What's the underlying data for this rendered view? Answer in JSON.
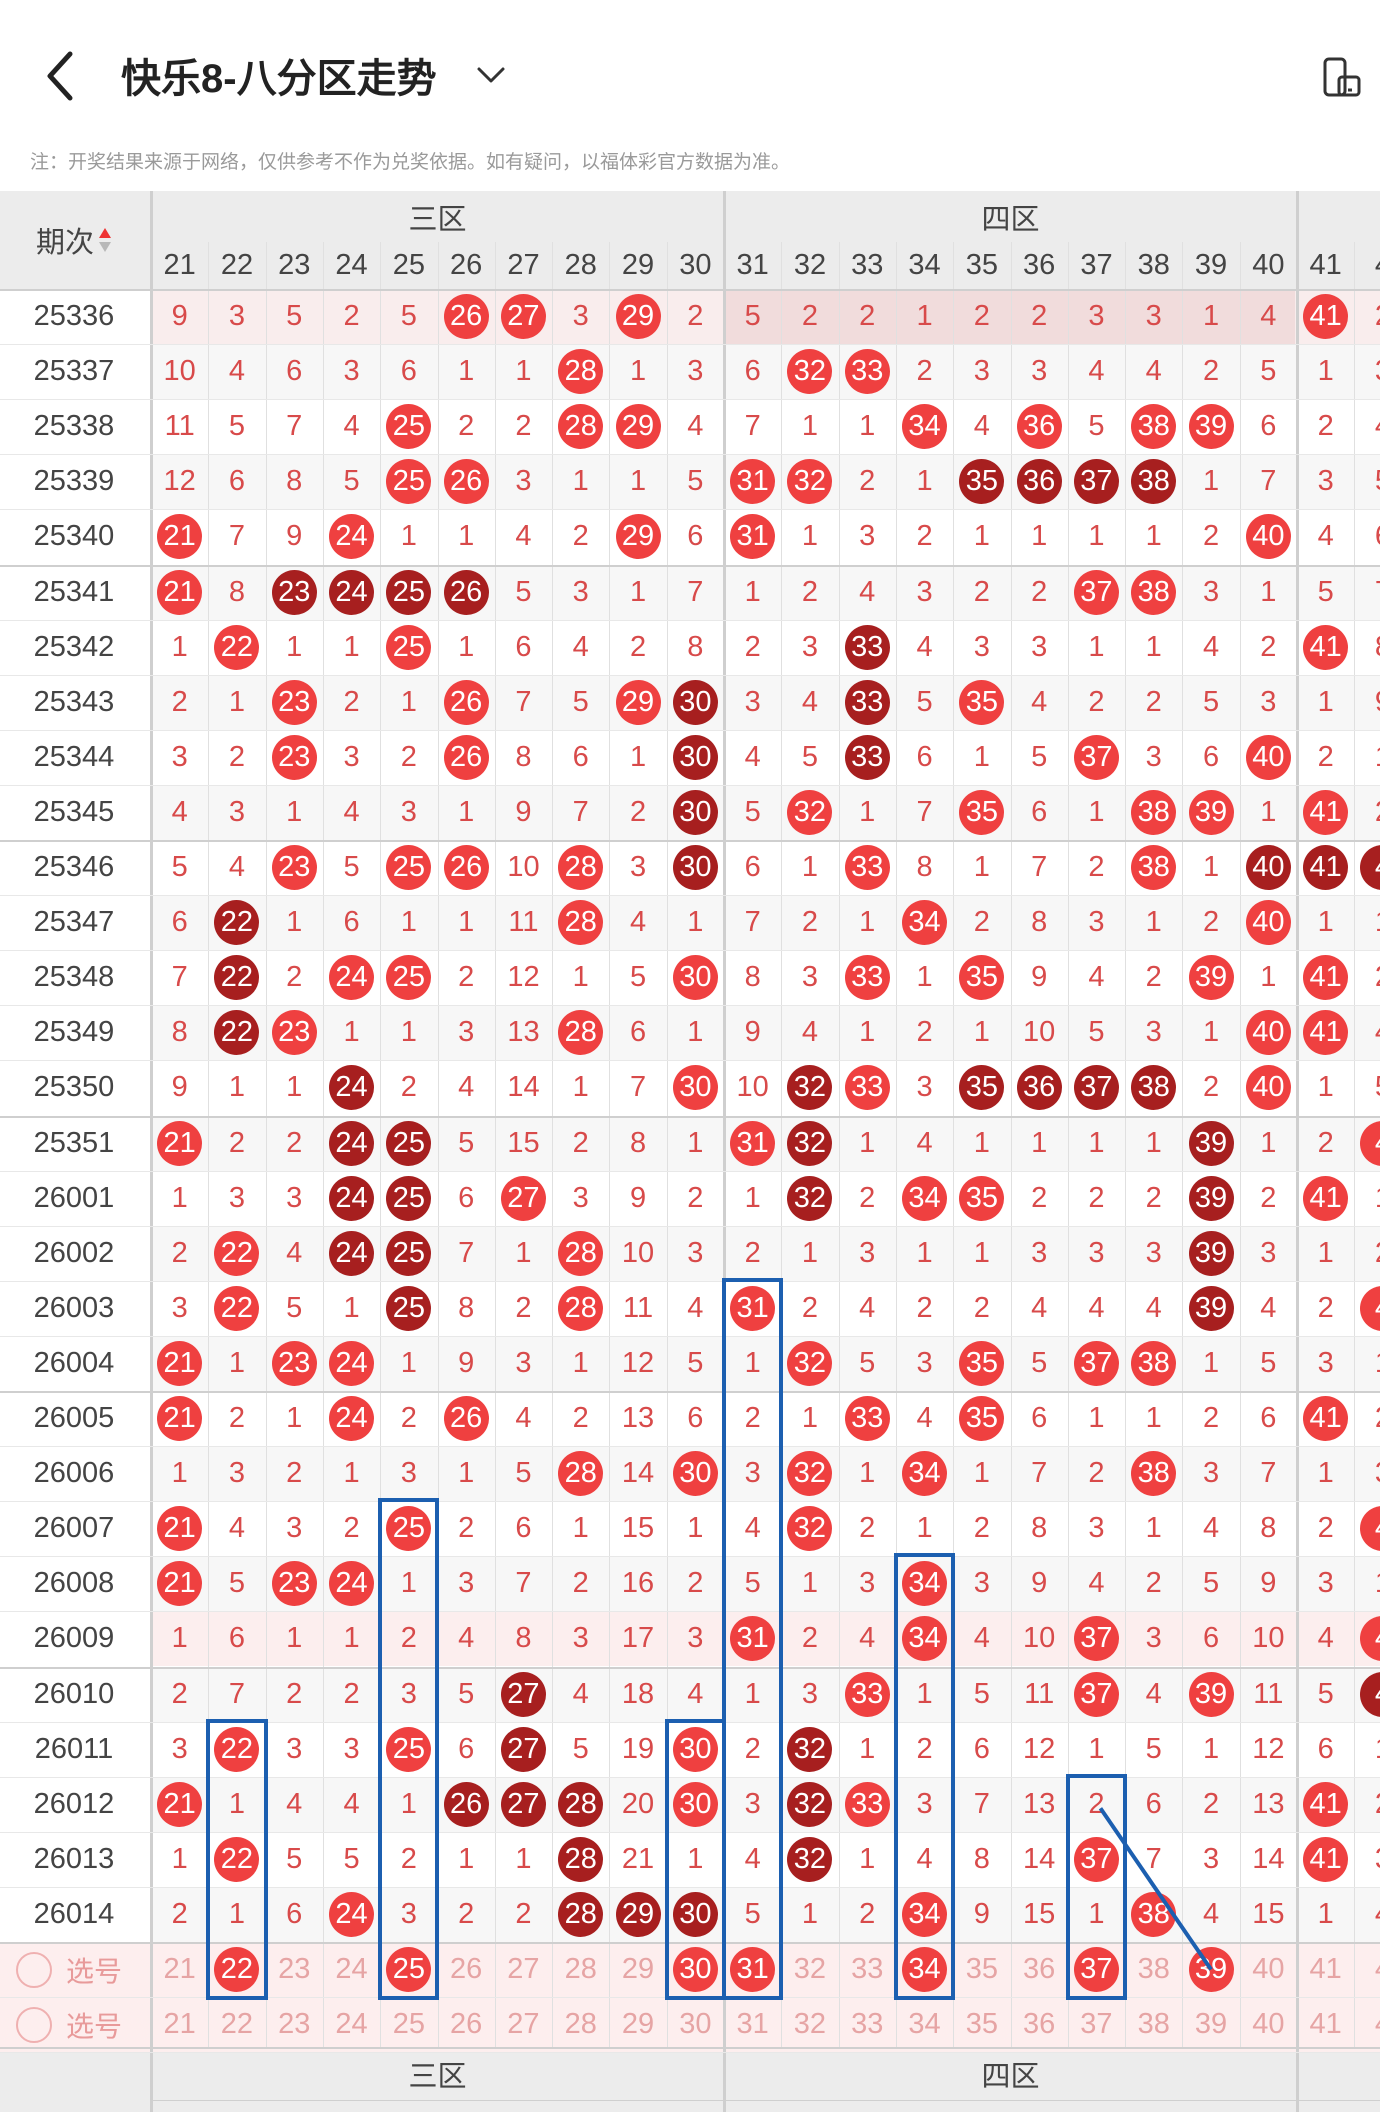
{
  "header": {
    "title": "快乐8-八分区走势",
    "note": "注：开奖结果来源于网络，仅供参考不作为兑奖依据。如有疑问，以福体彩官方数据为准。"
  },
  "icons": {
    "back": "chevron-left-icon",
    "dropdown": "chevron-down-icon",
    "rotate": "screen-rotate-icon",
    "sort": "sort-arrows-icon"
  },
  "colors": {
    "ball": "#ef4040",
    "dark_ball": "#a71f1f",
    "missing": "#d84a4a",
    "blue": "#1c5fb0"
  },
  "table": {
    "period_header": "期次",
    "zones": [
      {
        "label": "三区",
        "start": 21
      },
      {
        "label": "四区",
        "start": 31
      }
    ],
    "numbers": [
      "21",
      "22",
      "23",
      "24",
      "25",
      "26",
      "27",
      "28",
      "29",
      "30",
      "31",
      "32",
      "33",
      "34",
      "35",
      "36",
      "37",
      "38",
      "39",
      "40",
      "41",
      "4"
    ],
    "select_label": "选号",
    "selected": [
      22,
      25,
      30,
      31,
      34,
      37,
      39
    ],
    "rows": [
      {
        "p": "25336",
        "c": [
          "9",
          "3",
          "5",
          "2",
          "5",
          "R26",
          "R27",
          "3",
          "R29",
          "2",
          "5",
          "2",
          "2",
          "1",
          "2",
          "2",
          "3",
          "3",
          "1",
          "4",
          "R41",
          "2"
        ]
      },
      {
        "p": "25337",
        "c": [
          "10",
          "4",
          "6",
          "3",
          "6",
          "1",
          "1",
          "R28",
          "1",
          "3",
          "6",
          "R32",
          "R33",
          "2",
          "3",
          "3",
          "4",
          "4",
          "2",
          "5",
          "1",
          "3"
        ]
      },
      {
        "p": "25338",
        "c": [
          "11",
          "5",
          "7",
          "4",
          "R25",
          "2",
          "2",
          "R28",
          "R29",
          "4",
          "7",
          "1",
          "1",
          "R34",
          "4",
          "R36",
          "5",
          "R38",
          "R39",
          "6",
          "2",
          "4"
        ]
      },
      {
        "p": "25339",
        "c": [
          "12",
          "6",
          "8",
          "5",
          "R25",
          "R26",
          "3",
          "1",
          "1",
          "5",
          "R31",
          "R32",
          "2",
          "1",
          "D35",
          "D36",
          "D37",
          "D38",
          "1",
          "7",
          "3",
          "5"
        ]
      },
      {
        "p": "25340",
        "c": [
          "R21",
          "7",
          "9",
          "R24",
          "1",
          "1",
          "4",
          "2",
          "R29",
          "6",
          "R31",
          "1",
          "3",
          "2",
          "1",
          "1",
          "1",
          "1",
          "2",
          "R40",
          "4",
          "6"
        ]
      },
      {
        "p": "25341",
        "c": [
          "R21",
          "8",
          "D23",
          "D24",
          "D25",
          "D26",
          "5",
          "3",
          "1",
          "7",
          "1",
          "2",
          "4",
          "3",
          "2",
          "2",
          "R37",
          "R38",
          "3",
          "1",
          "5",
          "7"
        ]
      },
      {
        "p": "25342",
        "c": [
          "1",
          "R22",
          "1",
          "1",
          "R25",
          "1",
          "6",
          "4",
          "2",
          "8",
          "2",
          "3",
          "D33",
          "4",
          "3",
          "3",
          "1",
          "1",
          "4",
          "2",
          "R41",
          "8"
        ]
      },
      {
        "p": "25343",
        "c": [
          "2",
          "1",
          "R23",
          "2",
          "1",
          "R26",
          "7",
          "5",
          "R29",
          "D30",
          "3",
          "4",
          "D33",
          "5",
          "R35",
          "4",
          "2",
          "2",
          "5",
          "3",
          "1",
          "9"
        ]
      },
      {
        "p": "25344",
        "c": [
          "3",
          "2",
          "R23",
          "3",
          "2",
          "R26",
          "8",
          "6",
          "1",
          "D30",
          "4",
          "5",
          "D33",
          "6",
          "1",
          "5",
          "R37",
          "3",
          "6",
          "R40",
          "2",
          "1"
        ]
      },
      {
        "p": "25345",
        "c": [
          "4",
          "3",
          "1",
          "4",
          "3",
          "1",
          "9",
          "7",
          "2",
          "D30",
          "5",
          "R32",
          "1",
          "7",
          "R35",
          "6",
          "1",
          "R38",
          "R39",
          "1",
          "R41",
          "2"
        ]
      },
      {
        "p": "25346",
        "c": [
          "5",
          "4",
          "R23",
          "5",
          "R25",
          "R26",
          "10",
          "R28",
          "3",
          "D30",
          "6",
          "1",
          "R33",
          "8",
          "1",
          "7",
          "2",
          "R38",
          "1",
          "D40",
          "D41",
          "D4"
        ]
      },
      {
        "p": "25347",
        "c": [
          "6",
          "D22",
          "1",
          "6",
          "1",
          "1",
          "11",
          "R28",
          "4",
          "1",
          "7",
          "2",
          "1",
          "R34",
          "2",
          "8",
          "3",
          "1",
          "2",
          "R40",
          "1",
          "1"
        ]
      },
      {
        "p": "25348",
        "c": [
          "7",
          "D22",
          "2",
          "R24",
          "R25",
          "2",
          "12",
          "1",
          "5",
          "R30",
          "8",
          "3",
          "R33",
          "1",
          "R35",
          "9",
          "4",
          "2",
          "R39",
          "1",
          "R41",
          "2"
        ]
      },
      {
        "p": "25349",
        "c": [
          "8",
          "D22",
          "R23",
          "1",
          "1",
          "3",
          "13",
          "R28",
          "6",
          "1",
          "9",
          "4",
          "1",
          "2",
          "1",
          "10",
          "5",
          "3",
          "1",
          "R40",
          "R41",
          "4"
        ]
      },
      {
        "p": "25350",
        "c": [
          "9",
          "1",
          "1",
          "D24",
          "2",
          "4",
          "14",
          "1",
          "7",
          "R30",
          "10",
          "D32",
          "R33",
          "3",
          "D35",
          "D36",
          "D37",
          "D38",
          "2",
          "R40",
          "1",
          "5"
        ]
      },
      {
        "p": "25351",
        "c": [
          "R21",
          "2",
          "2",
          "D24",
          "D25",
          "5",
          "15",
          "2",
          "8",
          "1",
          "R31",
          "D32",
          "1",
          "4",
          "1",
          "1",
          "1",
          "1",
          "D39",
          "1",
          "2",
          "R4"
        ]
      },
      {
        "p": "26001",
        "c": [
          "1",
          "3",
          "3",
          "D24",
          "D25",
          "6",
          "R27",
          "3",
          "9",
          "2",
          "1",
          "D32",
          "2",
          "R34",
          "R35",
          "2",
          "2",
          "2",
          "D39",
          "2",
          "R41",
          "1"
        ]
      },
      {
        "p": "26002",
        "c": [
          "2",
          "R22",
          "4",
          "D24",
          "D25",
          "7",
          "1",
          "R28",
          "10",
          "3",
          "2",
          "1",
          "3",
          "1",
          "1",
          "3",
          "3",
          "3",
          "D39",
          "3",
          "1",
          "2"
        ]
      },
      {
        "p": "26003",
        "c": [
          "3",
          "R22",
          "5",
          "1",
          "D25",
          "8",
          "2",
          "R28",
          "11",
          "4",
          "R31",
          "2",
          "4",
          "2",
          "2",
          "4",
          "4",
          "4",
          "D39",
          "4",
          "2",
          "R4"
        ]
      },
      {
        "p": "26004",
        "c": [
          "R21",
          "1",
          "R23",
          "R24",
          "1",
          "9",
          "3",
          "1",
          "12",
          "5",
          "1",
          "R32",
          "5",
          "3",
          "R35",
          "5",
          "R37",
          "R38",
          "1",
          "5",
          "3",
          "1"
        ]
      },
      {
        "p": "26005",
        "c": [
          "R21",
          "2",
          "1",
          "R24",
          "2",
          "R26",
          "4",
          "2",
          "13",
          "6",
          "2",
          "1",
          "R33",
          "4",
          "R35",
          "6",
          "1",
          "1",
          "2",
          "6",
          "R41",
          "2"
        ]
      },
      {
        "p": "26006",
        "c": [
          "1",
          "3",
          "2",
          "1",
          "3",
          "1",
          "5",
          "R28",
          "14",
          "R30",
          "3",
          "R32",
          "1",
          "R34",
          "1",
          "7",
          "2",
          "R38",
          "3",
          "7",
          "1",
          "3"
        ]
      },
      {
        "p": "26007",
        "c": [
          "R21",
          "4",
          "3",
          "2",
          "R25",
          "2",
          "6",
          "1",
          "15",
          "1",
          "4",
          "R32",
          "2",
          "1",
          "2",
          "8",
          "3",
          "1",
          "4",
          "8",
          "2",
          "R4"
        ]
      },
      {
        "p": "26008",
        "c": [
          "R21",
          "5",
          "R23",
          "R24",
          "1",
          "3",
          "7",
          "2",
          "16",
          "2",
          "5",
          "1",
          "3",
          "R34",
          "3",
          "9",
          "4",
          "2",
          "5",
          "9",
          "3",
          "1"
        ]
      },
      {
        "p": "26009",
        "c": [
          "1",
          "6",
          "1",
          "1",
          "2",
          "4",
          "8",
          "3",
          "17",
          "3",
          "R31",
          "2",
          "4",
          "R34",
          "4",
          "10",
          "R37",
          "3",
          "6",
          "10",
          "4",
          "R4"
        ]
      },
      {
        "p": "26010",
        "c": [
          "2",
          "7",
          "2",
          "2",
          "3",
          "5",
          "D27",
          "4",
          "18",
          "4",
          "1",
          "3",
          "R33",
          "1",
          "5",
          "11",
          "R37",
          "4",
          "R39",
          "11",
          "5",
          "D4"
        ]
      },
      {
        "p": "26011",
        "c": [
          "3",
          "R22",
          "3",
          "3",
          "R25",
          "6",
          "D27",
          "5",
          "19",
          "R30",
          "2",
          "D32",
          "1",
          "2",
          "6",
          "12",
          "1",
          "5",
          "1",
          "12",
          "6",
          "1"
        ]
      },
      {
        "p": "26012",
        "c": [
          "R21",
          "1",
          "4",
          "4",
          "1",
          "D26",
          "D27",
          "D28",
          "20",
          "R30",
          "3",
          "D32",
          "R33",
          "3",
          "7",
          "13",
          "2",
          "6",
          "2",
          "13",
          "R41",
          "2"
        ]
      },
      {
        "p": "26013",
        "c": [
          "1",
          "R22",
          "5",
          "5",
          "2",
          "1",
          "1",
          "D28",
          "21",
          "1",
          "4",
          "D32",
          "1",
          "4",
          "8",
          "14",
          "R37",
          "7",
          "3",
          "14",
          "R41",
          "3"
        ]
      },
      {
        "p": "26014",
        "c": [
          "2",
          "1",
          "6",
          "R24",
          "3",
          "2",
          "2",
          "D28",
          "D29",
          "D30",
          "5",
          "1",
          "2",
          "R34",
          "9",
          "15",
          "1",
          "R38",
          "4",
          "15",
          "1",
          "4"
        ]
      }
    ]
  }
}
